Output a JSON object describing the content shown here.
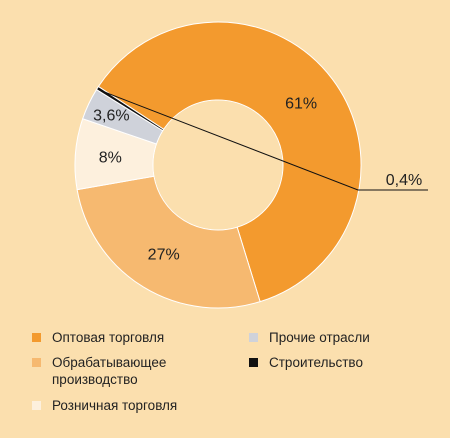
{
  "colors": {
    "background": "#fbdfae",
    "wholesale": "#f39a2e",
    "manufacturing": "#f6b970",
    "retail": "#fdf0dd",
    "other": "#cfd2da",
    "construction": "#111111"
  },
  "chart_data": {
    "type": "pie",
    "donut": true,
    "categories": [
      "Оптовая торговля",
      "Обрабатывающее производство",
      "Розничная торговля",
      "Прочие отрасли",
      "Строительство"
    ],
    "values": [
      61,
      27,
      8,
      3.6,
      0.4
    ],
    "data_labels": [
      "61%",
      "27%",
      "8%",
      "3,6%",
      "0,4%"
    ],
    "colors": [
      "#f39a2e",
      "#f6b970",
      "#fdf0dd",
      "#cfd2da",
      "#111111"
    ],
    "legend_position": "bottom"
  },
  "legend": [
    {
      "text": "Оптовая торговля",
      "color": "#f39a2e"
    },
    {
      "text": "Обрабатывающее производство",
      "color": "#f6b970"
    },
    {
      "text": "Розничная торговля",
      "color": "#fdf0dd"
    },
    {
      "text": "Прочие отрасли",
      "color": "#cfd2da"
    },
    {
      "text": "Строительство",
      "color": "#111111"
    }
  ]
}
